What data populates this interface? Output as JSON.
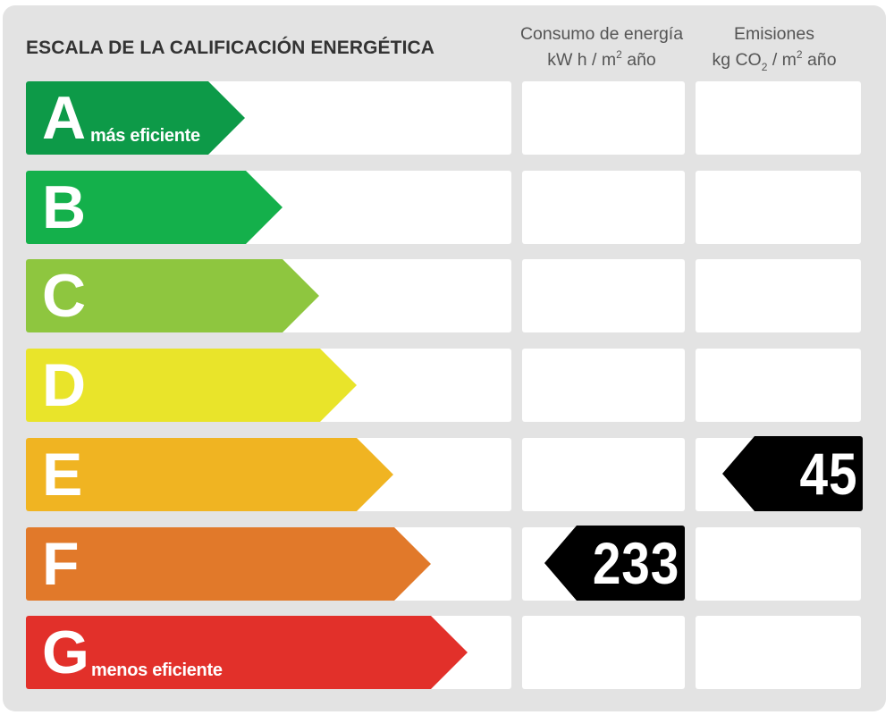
{
  "header": {
    "title": "ESCALA DE LA CALIFICACIÓN ENERGÉTICA",
    "energy_col": {
      "line1": "Consumo de energía",
      "unit_pre": "kW h  / m",
      "unit_sup": "2",
      "unit_post": " año"
    },
    "emissions_col": {
      "line1": "Emisiones",
      "unit_pre": "kg CO",
      "unit_sub": "2",
      "unit_mid": "  / m",
      "unit_sup": "2",
      "unit_post": " año"
    }
  },
  "grades": [
    {
      "letter": "A",
      "color": "#0d9a48",
      "sublabel": "más eficiente"
    },
    {
      "letter": "B",
      "color": "#14b04b",
      "sublabel": ""
    },
    {
      "letter": "C",
      "color": "#8ec63f",
      "sublabel": ""
    },
    {
      "letter": "D",
      "color": "#e9e42a",
      "sublabel": ""
    },
    {
      "letter": "E",
      "color": "#f0b422",
      "sublabel": ""
    },
    {
      "letter": "F",
      "color": "#e1792a",
      "sublabel": ""
    },
    {
      "letter": "G",
      "color": "#e2302a",
      "sublabel": "menos eficiente"
    }
  ],
  "rating": {
    "energy": {
      "grade": "F",
      "value": "233"
    },
    "emissions": {
      "grade": "E",
      "value": "45"
    }
  }
}
